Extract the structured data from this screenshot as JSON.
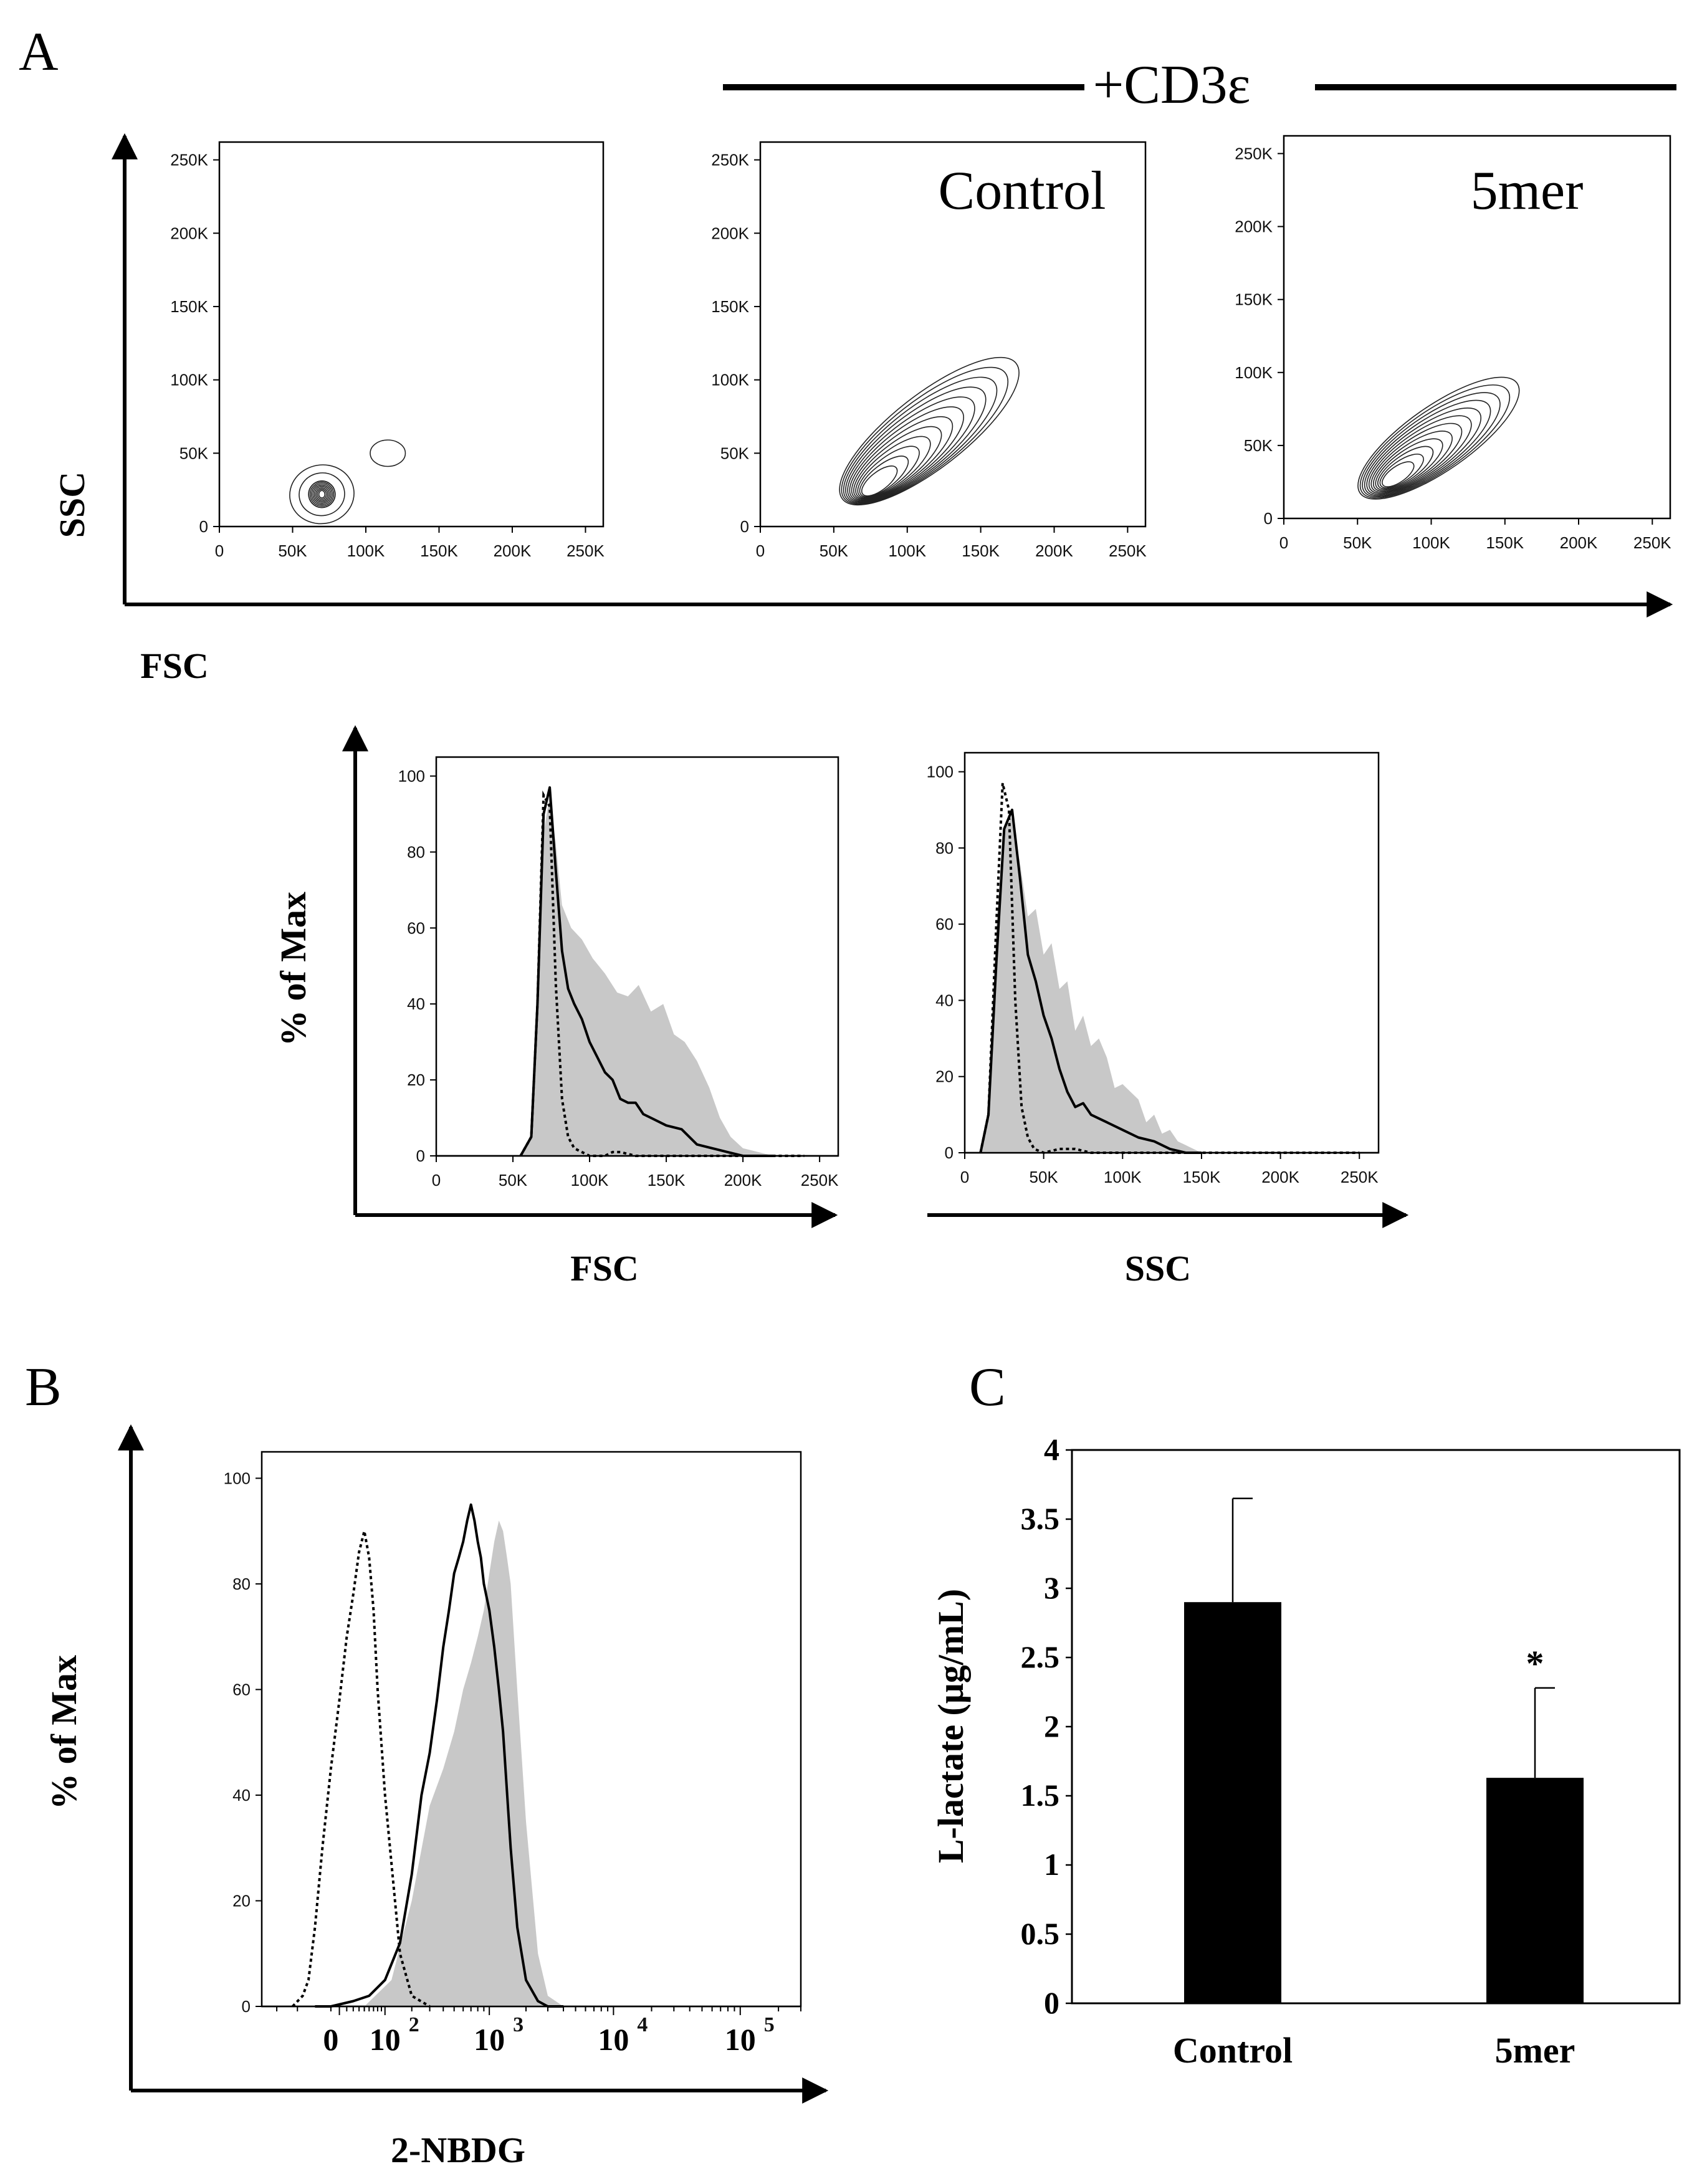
{
  "panel_labels": {
    "A": "A",
    "B": "B",
    "C": "C"
  },
  "treatment_header": "+CD3ε",
  "colors": {
    "filled": "#c8c8c8",
    "line": "#000000",
    "bar": "#000000"
  },
  "chart_data": [
    {
      "id": "A-contour",
      "type": "contour",
      "xlabel": "FSC",
      "ylabel": "SSC",
      "xticks": [
        "0",
        "50K",
        "100K",
        "150K",
        "200K",
        "250K"
      ],
      "yticks": [
        "0",
        "50K",
        "100K",
        "150K",
        "200K",
        "250K"
      ],
      "xlim": [
        0,
        262144
      ],
      "ylim": [
        0,
        262144
      ],
      "plots": [
        {
          "title": "",
          "populations": [
            {
              "cx": 70000,
              "cy": 22000,
              "rx": 9000,
              "ry": 9000,
              "levels": 8,
              "angle": 0
            },
            {
              "cx": 70000,
              "cy": 22000,
              "rx": 22000,
              "ry": 20000,
              "levels": 3,
              "angle": 10
            },
            {
              "cx": 115000,
              "cy": 50000,
              "rx": 12000,
              "ry": 9000,
              "levels": 1,
              "angle": 0
            }
          ]
        },
        {
          "title": "Control",
          "populations": [
            {
              "cx": 115000,
              "cy": 65000,
              "rx": 75000,
              "ry": 25000,
              "levels": 12,
              "angle": 38,
              "anchor": [
                78000,
                28000
              ]
            }
          ]
        },
        {
          "title": "5mer",
          "populations": [
            {
              "cx": 105000,
              "cy": 55000,
              "rx": 65000,
              "ry": 22000,
              "levels": 12,
              "angle": 35,
              "anchor": [
                75000,
                28000
              ]
            }
          ]
        }
      ]
    },
    {
      "id": "A-hist-FSC",
      "type": "histogram",
      "xlabel": "FSC",
      "ylabel": "% of Max",
      "xticks": [
        "0",
        "50K",
        "100K",
        "150K",
        "200K",
        "250K"
      ],
      "yticks": [
        "0",
        "20",
        "40",
        "60",
        "80",
        "100"
      ],
      "xlim": [
        0,
        262144
      ],
      "ylim": [
        0,
        105
      ],
      "series": [
        {
          "name": "filled",
          "style": "filled",
          "x": [
            55000,
            62000,
            66000,
            70000,
            74000,
            78000,
            82000,
            88000,
            95000,
            102000,
            110000,
            118000,
            125000,
            132000,
            140000,
            148000,
            155000,
            162000,
            170000,
            178000,
            185000,
            192000,
            200000,
            210000,
            220000,
            230000,
            240000
          ],
          "y": [
            0,
            5,
            40,
            85,
            95,
            82,
            66,
            60,
            57,
            52,
            48,
            43,
            42,
            45,
            38,
            40,
            32,
            30,
            25,
            18,
            10,
            5,
            2,
            1,
            0,
            0,
            0
          ]
        },
        {
          "name": "solid",
          "style": "solid",
          "x": [
            55000,
            62000,
            66000,
            70000,
            74000,
            78000,
            82000,
            86000,
            90000,
            95000,
            100000,
            105000,
            110000,
            115000,
            120000,
            125000,
            130000,
            135000,
            140000,
            150000,
            160000,
            170000,
            180000,
            190000,
            200000,
            210000,
            220000
          ],
          "y": [
            0,
            5,
            40,
            90,
            97,
            75,
            54,
            44,
            40,
            36,
            30,
            26,
            22,
            20,
            15,
            14,
            14,
            11,
            10,
            8,
            7,
            3,
            2,
            1,
            0,
            0,
            0
          ]
        },
        {
          "name": "dotted",
          "style": "dotted",
          "x": [
            55000,
            62000,
            66000,
            70000,
            74000,
            78000,
            82000,
            86000,
            90000,
            95000,
            100000,
            110000,
            115000,
            120000,
            130000,
            150000,
            240000
          ],
          "y": [
            0,
            5,
            40,
            95,
            92,
            45,
            15,
            5,
            2,
            1,
            0,
            0,
            1,
            1,
            0,
            0,
            0
          ]
        }
      ]
    },
    {
      "id": "A-hist-SSC",
      "type": "histogram",
      "xlabel": "SSC",
      "ylabel": "",
      "xticks": [
        "0",
        "50K",
        "100K",
        "150K",
        "200K",
        "250K"
      ],
      "yticks": [
        "0",
        "20",
        "40",
        "60",
        "80",
        "100"
      ],
      "xlim": [
        0,
        262144
      ],
      "ylim": [
        0,
        105
      ],
      "series": [
        {
          "name": "filled",
          "style": "filled",
          "x": [
            10000,
            15000,
            20000,
            25000,
            30000,
            35000,
            40000,
            45000,
            50000,
            55000,
            60000,
            65000,
            70000,
            75000,
            80000,
            85000,
            90000,
            95000,
            100000,
            105000,
            110000,
            115000,
            120000,
            125000,
            130000,
            135000,
            140000,
            150000,
            160000
          ],
          "y": [
            0,
            10,
            60,
            85,
            88,
            76,
            62,
            64,
            52,
            55,
            43,
            45,
            32,
            36,
            28,
            30,
            25,
            17,
            18,
            16,
            14,
            8,
            10,
            5,
            6,
            3,
            2,
            0,
            0
          ]
        },
        {
          "name": "solid",
          "style": "solid",
          "x": [
            10000,
            15000,
            20000,
            25000,
            30000,
            35000,
            40000,
            45000,
            50000,
            55000,
            60000,
            65000,
            70000,
            75000,
            80000,
            90000,
            100000,
            110000,
            120000,
            130000,
            140000,
            150000
          ],
          "y": [
            0,
            10,
            50,
            85,
            90,
            72,
            52,
            45,
            36,
            30,
            22,
            16,
            12,
            13,
            10,
            8,
            6,
            4,
            3,
            1,
            0,
            0
          ]
        },
        {
          "name": "dotted",
          "style": "dotted",
          "x": [
            10000,
            15000,
            20000,
            24000,
            28000,
            32000,
            36000,
            40000,
            44000,
            50000,
            60000,
            70000,
            80000,
            100000,
            250000
          ],
          "y": [
            0,
            10,
            60,
            97,
            90,
            40,
            12,
            4,
            1,
            0,
            1,
            1,
            0,
            0,
            0
          ]
        }
      ]
    },
    {
      "id": "B-hist",
      "type": "histogram",
      "scale": "biexponential",
      "xlabel": "2-NBDG",
      "ylabel": "% of Max",
      "xticks": [
        "0",
        "10",
        "10",
        "10",
        "10"
      ],
      "xtick_exponents": [
        "",
        "2",
        "3",
        "4",
        "5"
      ],
      "xtick_positions": [
        0,
        100,
        1000,
        10000,
        100000
      ],
      "yticks": [
        "0",
        "20",
        "40",
        "60",
        "80",
        "100"
      ],
      "ylim": [
        0,
        105
      ],
      "series": [
        {
          "name": "filled",
          "style": "filled",
          "x": [
            50,
            120,
            200,
            300,
            400,
            500,
            600,
            700,
            800,
            900,
            1000,
            1100,
            1200,
            1300,
            1400,
            1500,
            1700,
            2000,
            2500,
            3000,
            4000
          ],
          "y": [
            0,
            5,
            20,
            38,
            45,
            52,
            60,
            65,
            70,
            75,
            82,
            88,
            92,
            90,
            85,
            80,
            60,
            35,
            10,
            2,
            0
          ]
        },
        {
          "name": "solid",
          "style": "solid",
          "x": [
            -20,
            0,
            30,
            60,
            100,
            150,
            200,
            250,
            300,
            350,
            400,
            450,
            500,
            550,
            600,
            650,
            700,
            750,
            800,
            850,
            900,
            1000,
            1100,
            1200,
            1300,
            1500,
            1700,
            2000,
            2500,
            3000,
            4000
          ],
          "y": [
            0,
            0,
            1,
            2,
            5,
            12,
            25,
            40,
            48,
            58,
            68,
            75,
            82,
            85,
            88,
            92,
            95,
            92,
            88,
            85,
            80,
            75,
            68,
            60,
            52,
            30,
            15,
            5,
            1,
            0,
            0
          ]
        },
        {
          "name": "dotted",
          "style": "dotted",
          "x": [
            -60,
            -40,
            -30,
            -20,
            -10,
            0,
            10,
            20,
            30,
            40,
            50,
            60,
            70,
            80,
            100,
            150,
            200,
            300
          ],
          "y": [
            0,
            2,
            5,
            15,
            30,
            45,
            58,
            70,
            78,
            86,
            90,
            85,
            75,
            60,
            40,
            10,
            2,
            0
          ]
        }
      ]
    },
    {
      "id": "C-bar",
      "type": "bar",
      "ylabel": "L-lactate (μg/mL)",
      "categories": [
        "Control",
        "5mer"
      ],
      "values": [
        2.9,
        1.63
      ],
      "errors": [
        0.75,
        0.65
      ],
      "significance": [
        "",
        "*"
      ],
      "ylim": [
        0,
        4
      ],
      "yticks": [
        "0",
        "0.5",
        "1",
        "1.5",
        "2",
        "2.5",
        "3",
        "3.5",
        "4"
      ]
    }
  ]
}
